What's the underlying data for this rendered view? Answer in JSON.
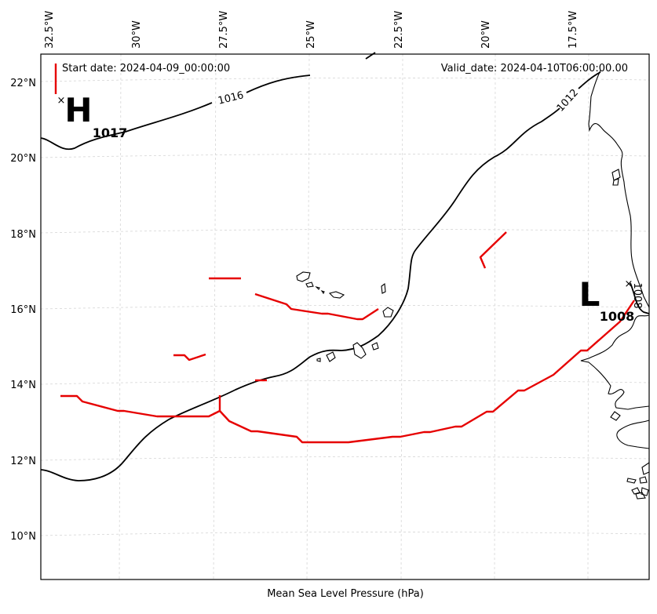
{
  "header": {
    "start_date": "Start date: 2024-04-09_00:00:00",
    "valid_date": "Valid_date: 2024-04-10T06:00:00.00"
  },
  "footer_label": "Mean Sea Level Pressure (hPa)",
  "axes": {
    "lon_labels": [
      "32.5°W",
      "30°W",
      "27.5°W",
      "25°W",
      "22.5°W",
      "20°W",
      "17.5°W"
    ],
    "lat_labels": [
      "22°N",
      "20°N",
      "18°N",
      "16°N",
      "14°N",
      "12°N",
      "10°N"
    ]
  },
  "pressure_centers": [
    {
      "symbol": "H",
      "value": "1017",
      "lon": -31.5,
      "lat": 21.3
    },
    {
      "symbol": "L",
      "value": "1008",
      "lon": -16.2,
      "lat": 16.3
    }
  ],
  "isobar_labels": [
    "1016",
    "1012",
    "1008"
  ],
  "colors": {
    "isobar": "#000000",
    "front": "#e60000",
    "grid": "#d6d6d6"
  }
}
